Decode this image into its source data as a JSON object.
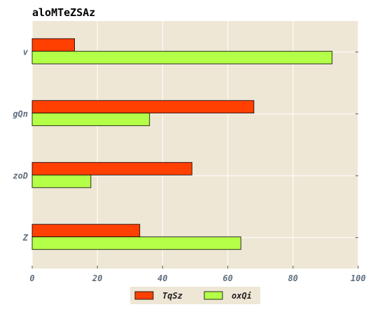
{
  "chart_data": {
    "type": "bar",
    "orientation": "horizontal",
    "title": "aloMTeZSAz",
    "xlabel": "",
    "ylabel": "",
    "categories": [
      "v",
      "gQn",
      "zoD",
      "Z"
    ],
    "series": [
      {
        "name": "TqSz",
        "values": [
          13,
          68,
          49,
          33
        ],
        "color": "#ff4000"
      },
      {
        "name": "oxQi",
        "values": [
          92,
          36,
          18,
          64
        ],
        "color": "#b4ff47"
      }
    ],
    "xlim": [
      0,
      100
    ],
    "xticks": [
      "0",
      "20",
      "40",
      "60",
      "80",
      "100"
    ],
    "grid": true,
    "legend_position": "bottom-center",
    "colors": {
      "plot_background": "#efe7d6",
      "grid": "#ffffff",
      "tick_label": "#5f6f7f",
      "bar_edge": "#000000",
      "legend_background": "#efe7d6"
    }
  }
}
